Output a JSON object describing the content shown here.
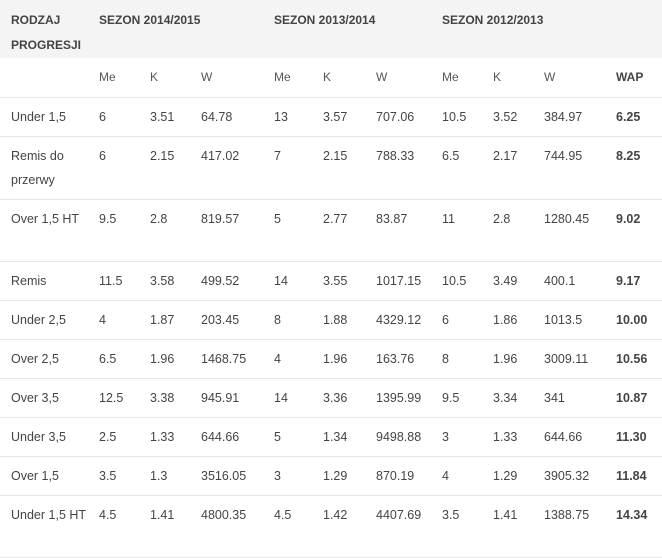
{
  "header": {
    "col_label": "RODZAJ PROGRESJI",
    "seasons": [
      "SEZON 2014/2015",
      "SEZON 2013/2014",
      "SEZON 2012/2013"
    ],
    "sub": [
      "Me",
      "K",
      "W"
    ],
    "wap": "WAP"
  },
  "rows": [
    {
      "label": "Under 1,5",
      "s1": [
        "6",
        "3.51",
        "64.78"
      ],
      "s2": [
        "13",
        "3.57",
        "707.06"
      ],
      "s3": [
        "10.5",
        "3.52",
        "384.97"
      ],
      "wap": "6.25"
    },
    {
      "label": "Remis do przerwy",
      "s1": [
        "6",
        "2.15",
        "417.02"
      ],
      "s2": [
        "7",
        "2.15",
        "788.33"
      ],
      "s3": [
        "6.5",
        "2.17",
        "744.95"
      ],
      "wap": "8.25"
    },
    {
      "label": "Over 1,5 HT",
      "s1": [
        "9.5",
        "2.8",
        "819.57"
      ],
      "s2": [
        "5",
        "2.77",
        "83.87"
      ],
      "s3": [
        "11",
        "2.8",
        "1280.45"
      ],
      "wap": "9.02"
    },
    {
      "label": "Remis",
      "s1": [
        "11.5",
        "3.58",
        "499.52"
      ],
      "s2": [
        "14",
        "3.55",
        "1017.15"
      ],
      "s3": [
        "10.5",
        "3.49",
        "400.1"
      ],
      "wap": "9.17"
    },
    {
      "label": "Under 2,5",
      "s1": [
        "4",
        "1.87",
        "203.45"
      ],
      "s2": [
        "8",
        "1.88",
        "4329.12"
      ],
      "s3": [
        "6",
        "1.86",
        "1013.5"
      ],
      "wap": "10.00"
    },
    {
      "label": "Over 2,5",
      "s1": [
        "6.5",
        "1.96",
        "1468.75"
      ],
      "s2": [
        "4",
        "1.96",
        "163.76"
      ],
      "s3": [
        "8",
        "1.96",
        "3009.11"
      ],
      "wap": "10.56"
    },
    {
      "label": "Over 3,5",
      "s1": [
        "12.5",
        "3.38",
        "945.91"
      ],
      "s2": [
        "14",
        "3.36",
        "1395.99"
      ],
      "s3": [
        "9.5",
        "3.34",
        "341"
      ],
      "wap": "10.87"
    },
    {
      "label": "Under 3,5",
      "s1": [
        "2.5",
        "1.33",
        "644.66"
      ],
      "s2": [
        "5",
        "1.34",
        "9498.88"
      ],
      "s3": [
        "3",
        "1.33",
        "644.66"
      ],
      "wap": "11.30"
    },
    {
      "label": "Over 1,5",
      "s1": [
        "3.5",
        "1.3",
        "3516.05"
      ],
      "s2": [
        "3",
        "1.29",
        "870.19"
      ],
      "s3": [
        "4",
        "1.29",
        "3905.32"
      ],
      "wap": "11.84"
    },
    {
      "label": "Under 1,5 HT",
      "s1": [
        "4.5",
        "1.41",
        "4800.35"
      ],
      "s2": [
        "4.5",
        "1.42",
        "4407.69"
      ],
      "s3": [
        "3.5",
        "1.41",
        "1388.75"
      ],
      "wap": "14.34"
    }
  ]
}
